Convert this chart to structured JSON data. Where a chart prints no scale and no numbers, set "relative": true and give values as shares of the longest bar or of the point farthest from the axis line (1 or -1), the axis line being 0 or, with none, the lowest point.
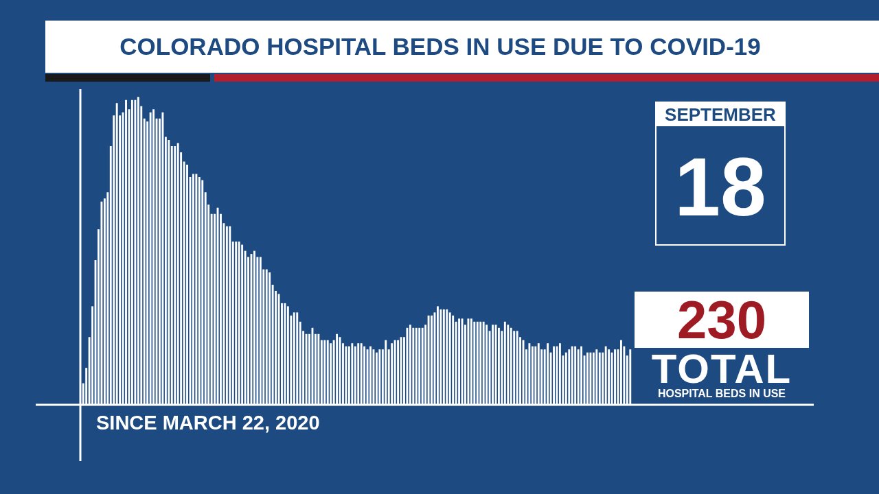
{
  "chart_data": {
    "type": "bar",
    "title": "COLORADO HOSPITAL BEDS IN USE DUE TO COVID-19",
    "relative": true,
    "color": "#ffffff",
    "categories": [
      null,
      null,
      null,
      null,
      null,
      null,
      null,
      null,
      null,
      null,
      null,
      null,
      null,
      null,
      null,
      null,
      null,
      null,
      null,
      null,
      null,
      null,
      null,
      null,
      null,
      null,
      null,
      null,
      null,
      null,
      null,
      null,
      null,
      null,
      null,
      null,
      null,
      null,
      null,
      null,
      null,
      null,
      null,
      null,
      null,
      null,
      null,
      null,
      null,
      null,
      null,
      null,
      null,
      null,
      null,
      null,
      null,
      null,
      null,
      null,
      null,
      null,
      null,
      null,
      null,
      null,
      null,
      null,
      null,
      null,
      null,
      null,
      null,
      null,
      null,
      null,
      null,
      null,
      null,
      null,
      null,
      null,
      null,
      null,
      null,
      null,
      null,
      null,
      null,
      null,
      null,
      null,
      null,
      null,
      null,
      null,
      null,
      null,
      null,
      null,
      null,
      null,
      null,
      null,
      null,
      null,
      null,
      null,
      null,
      null,
      null,
      null,
      null,
      null,
      null,
      null,
      null,
      null,
      null,
      null,
      null,
      null,
      null,
      null,
      null,
      null,
      null,
      null,
      null,
      null,
      null,
      null,
      null,
      null,
      null,
      null,
      null,
      null,
      null,
      null,
      null,
      null,
      null,
      null,
      null,
      null,
      null,
      null,
      null,
      null,
      null,
      null,
      null,
      null,
      null,
      null,
      null,
      null,
      null,
      null,
      null,
      null,
      null,
      null,
      null,
      null,
      null,
      null,
      null,
      null,
      null,
      null,
      null,
      null,
      null,
      null,
      null,
      null,
      null,
      null
    ],
    "values": [
      0.07,
      0.12,
      0.22,
      0.32,
      0.47,
      0.57,
      0.66,
      0.67,
      0.69,
      0.84,
      0.94,
      0.98,
      0.94,
      0.95,
      0.99,
      0.96,
      0.99,
      0.99,
      1,
      0.97,
      0.93,
      0.92,
      0.95,
      0.96,
      0.93,
      0.93,
      0.95,
      0.87,
      0.86,
      0.84,
      0.84,
      0.85,
      0.82,
      0.79,
      0.78,
      0.74,
      0.75,
      0.75,
      0.74,
      0.73,
      0.69,
      0.65,
      0.62,
      0.62,
      0.64,
      0.62,
      0.59,
      0.58,
      0.58,
      0.53,
      0.53,
      0.53,
      0.52,
      0.5,
      0.48,
      0.49,
      0.5,
      0.48,
      0.48,
      0.44,
      0.44,
      0.43,
      0.39,
      0.37,
      0.36,
      0.33,
      0.33,
      0.32,
      0.29,
      0.3,
      0.3,
      0.27,
      0.24,
      0.23,
      0.23,
      0.25,
      0.23,
      0.23,
      0.21,
      0.21,
      0.21,
      0.2,
      0.21,
      0.23,
      0.22,
      0.2,
      0.19,
      0.19,
      0.2,
      0.19,
      0.2,
      0.2,
      0.19,
      0.18,
      0.19,
      0.18,
      0.17,
      0.18,
      0.18,
      0.21,
      0.18,
      0.2,
      0.21,
      0.21,
      0.22,
      0.22,
      0.25,
      0.26,
      0.25,
      0.25,
      0.25,
      0.25,
      0.26,
      0.29,
      0.29,
      0.3,
      0.32,
      0.31,
      0.31,
      0.31,
      0.3,
      0.29,
      0.27,
      0.28,
      0.28,
      0.26,
      0.28,
      0.28,
      0.27,
      0.27,
      0.27,
      0.27,
      0.26,
      0.24,
      0.26,
      0.26,
      0.25,
      0.24,
      0.27,
      0.26,
      0.25,
      0.24,
      0.24,
      0.22,
      0.21,
      0.18,
      0.2,
      0.19,
      0.19,
      0.2,
      0.18,
      0.18,
      0.2,
      0.17,
      0.19,
      0.19,
      0.2,
      0.16,
      0.17,
      0.18,
      0.19,
      0.19,
      0.18,
      0.19,
      0.16,
      0.17,
      0.17,
      0.17,
      0.18,
      0.17,
      0.17,
      0.19,
      0.18,
      0.17,
      0.18,
      0.18,
      0.21,
      0.19,
      0.16,
      0.18
    ],
    "annotations": [
      "SINCE MARCH 22, 2020",
      "SEPTEMBER",
      "18",
      "230",
      "TOTAL",
      "HOSPITAL BEDS IN USE"
    ]
  }
}
